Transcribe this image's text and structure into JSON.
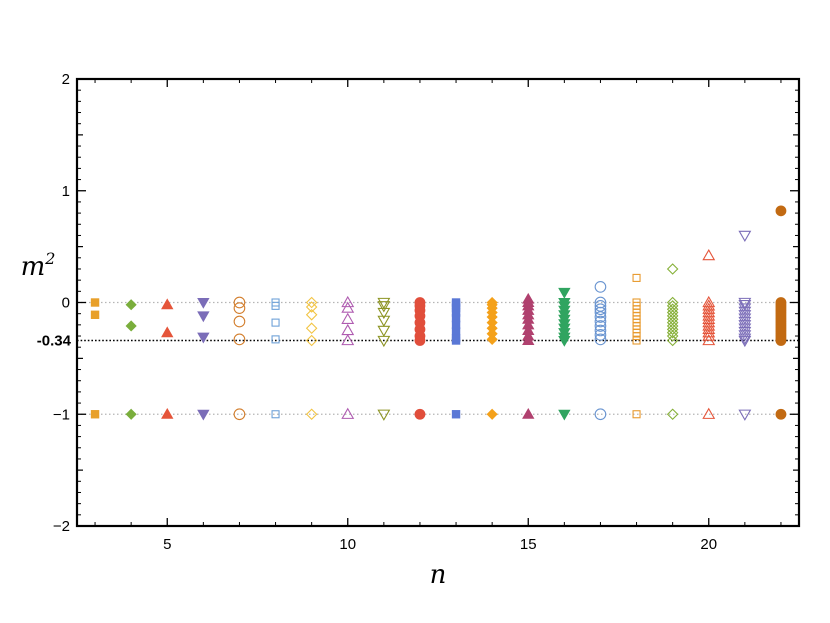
{
  "chart_data": {
    "type": "scatter",
    "title": "",
    "xlabel": "n",
    "ylabel_base": "m",
    "ylabel_sup": "2",
    "xlim": [
      2.5,
      22.5
    ],
    "ylim": [
      -2,
      2
    ],
    "xticks_major": [
      5,
      10,
      15,
      20
    ],
    "xtick_labels": [
      "5",
      "10",
      "15",
      "20"
    ],
    "yticks_major": [
      -2,
      -1,
      0,
      1,
      2
    ],
    "ytick_labels": [
      "−2",
      "−1",
      "0",
      "1",
      "2"
    ],
    "grid": false,
    "reference_lines": [
      {
        "y": 0,
        "style": "dotted-gray"
      },
      {
        "y": -1,
        "style": "dotted-gray"
      },
      {
        "y": -0.34,
        "style": "dotted-black",
        "label": "-0.34"
      }
    ],
    "series": [
      {
        "x": 3,
        "marker": "square",
        "filled": true,
        "color": "#E8A02A",
        "values": [
          0,
          -0.11,
          -1
        ]
      },
      {
        "x": 4,
        "marker": "diamond",
        "filled": true,
        "color": "#7AAE3C",
        "values": [
          -0.02,
          -0.21,
          -1
        ]
      },
      {
        "x": 5,
        "marker": "triangle-up",
        "filled": true,
        "color": "#E5553A",
        "values": [
          -0.02,
          -0.27,
          -1
        ]
      },
      {
        "x": 6,
        "marker": "triangle-down",
        "filled": true,
        "color": "#7B6DB8",
        "values": [
          0,
          -0.12,
          -0.31,
          -1
        ]
      },
      {
        "x": 7,
        "marker": "circle",
        "filled": false,
        "color": "#D37F2E",
        "values": [
          0,
          -0.05,
          -0.17,
          -0.33,
          -1
        ]
      },
      {
        "x": 8,
        "marker": "square",
        "filled": false,
        "color": "#6FA2D8",
        "values": [
          0,
          -0.03,
          -0.18,
          -0.33,
          -1
        ]
      },
      {
        "x": 9,
        "marker": "diamond",
        "filled": false,
        "color": "#F2C443",
        "values": [
          0,
          -0.04,
          -0.11,
          -0.23,
          -0.34,
          -1
        ]
      },
      {
        "x": 10,
        "marker": "triangle-up",
        "filled": false,
        "color": "#AF5BB0",
        "values": [
          0,
          -0.05,
          -0.15,
          -0.25,
          -0.34,
          -1
        ]
      },
      {
        "x": 11,
        "marker": "triangle-down",
        "filled": false,
        "color": "#8C9422",
        "values": [
          0,
          -0.03,
          -0.09,
          -0.16,
          -0.25,
          -0.34,
          -1
        ]
      },
      {
        "x": 12,
        "marker": "circle",
        "filled": true,
        "color": "#E14E3B",
        "values": [
          0,
          -0.03,
          -0.07,
          -0.12,
          -0.18,
          -0.24,
          -0.3,
          -0.34,
          -1
        ]
      },
      {
        "x": 13,
        "marker": "square",
        "filled": true,
        "color": "#5A78D6",
        "values": [
          0,
          -0.02,
          -0.05,
          -0.09,
          -0.14,
          -0.2,
          -0.26,
          -0.32,
          -0.34,
          -1
        ]
      },
      {
        "x": 14,
        "marker": "diamond",
        "filled": true,
        "color": "#F4A11A",
        "values": [
          0,
          -0.02,
          -0.05,
          -0.09,
          -0.13,
          -0.18,
          -0.23,
          -0.28,
          -0.33,
          -1
        ]
      },
      {
        "x": 15,
        "marker": "triangle-up",
        "filled": true,
        "color": "#B0416F",
        "values": [
          0.03,
          0,
          -0.03,
          -0.07,
          -0.11,
          -0.15,
          -0.2,
          -0.25,
          -0.3,
          -0.34,
          -1
        ]
      },
      {
        "x": 16,
        "marker": "triangle-down",
        "filled": true,
        "color": "#30A460",
        "values": [
          0.09,
          0,
          -0.03,
          -0.07,
          -0.11,
          -0.15,
          -0.19,
          -0.23,
          -0.27,
          -0.31,
          -0.34,
          -1
        ]
      },
      {
        "x": 17,
        "marker": "circle",
        "filled": false,
        "color": "#6A95D1",
        "values": [
          0.14,
          0,
          -0.03,
          -0.06,
          -0.09,
          -0.13,
          -0.17,
          -0.21,
          -0.25,
          -0.29,
          -0.33,
          -1
        ]
      },
      {
        "x": 18,
        "marker": "square",
        "filled": false,
        "color": "#E89A2E",
        "values": [
          0.22,
          0,
          -0.03,
          -0.06,
          -0.09,
          -0.12,
          -0.15,
          -0.18,
          -0.21,
          -0.24,
          -0.27,
          -0.3,
          -0.34,
          -1
        ]
      },
      {
        "x": 19,
        "marker": "diamond",
        "filled": false,
        "color": "#86B038",
        "values": [
          0.3,
          0,
          -0.03,
          -0.06,
          -0.09,
          -0.12,
          -0.15,
          -0.18,
          -0.21,
          -0.24,
          -0.27,
          -0.3,
          -0.34,
          -1
        ]
      },
      {
        "x": 20,
        "marker": "triangle-up",
        "filled": false,
        "color": "#E5553A",
        "values": [
          0.42,
          0,
          -0.03,
          -0.06,
          -0.09,
          -0.12,
          -0.15,
          -0.18,
          -0.21,
          -0.24,
          -0.27,
          -0.3,
          -0.34,
          -1
        ]
      },
      {
        "x": 21,
        "marker": "triangle-down",
        "filled": false,
        "color": "#7B6DB8",
        "values": [
          0.6,
          0,
          -0.02,
          -0.05,
          -0.08,
          -0.11,
          -0.14,
          -0.17,
          -0.2,
          -0.23,
          -0.26,
          -0.29,
          -0.32,
          -0.34,
          -1
        ]
      },
      {
        "x": 22,
        "marker": "circle",
        "filled": true,
        "color": "#C26A12",
        "values": [
          0.82,
          0,
          -0.02,
          -0.04,
          -0.06,
          -0.08,
          -0.1,
          -0.12,
          -0.14,
          -0.16,
          -0.18,
          -0.2,
          -0.22,
          -0.24,
          -0.26,
          -0.28,
          -0.3,
          -0.32,
          -0.34,
          -1
        ]
      }
    ]
  }
}
